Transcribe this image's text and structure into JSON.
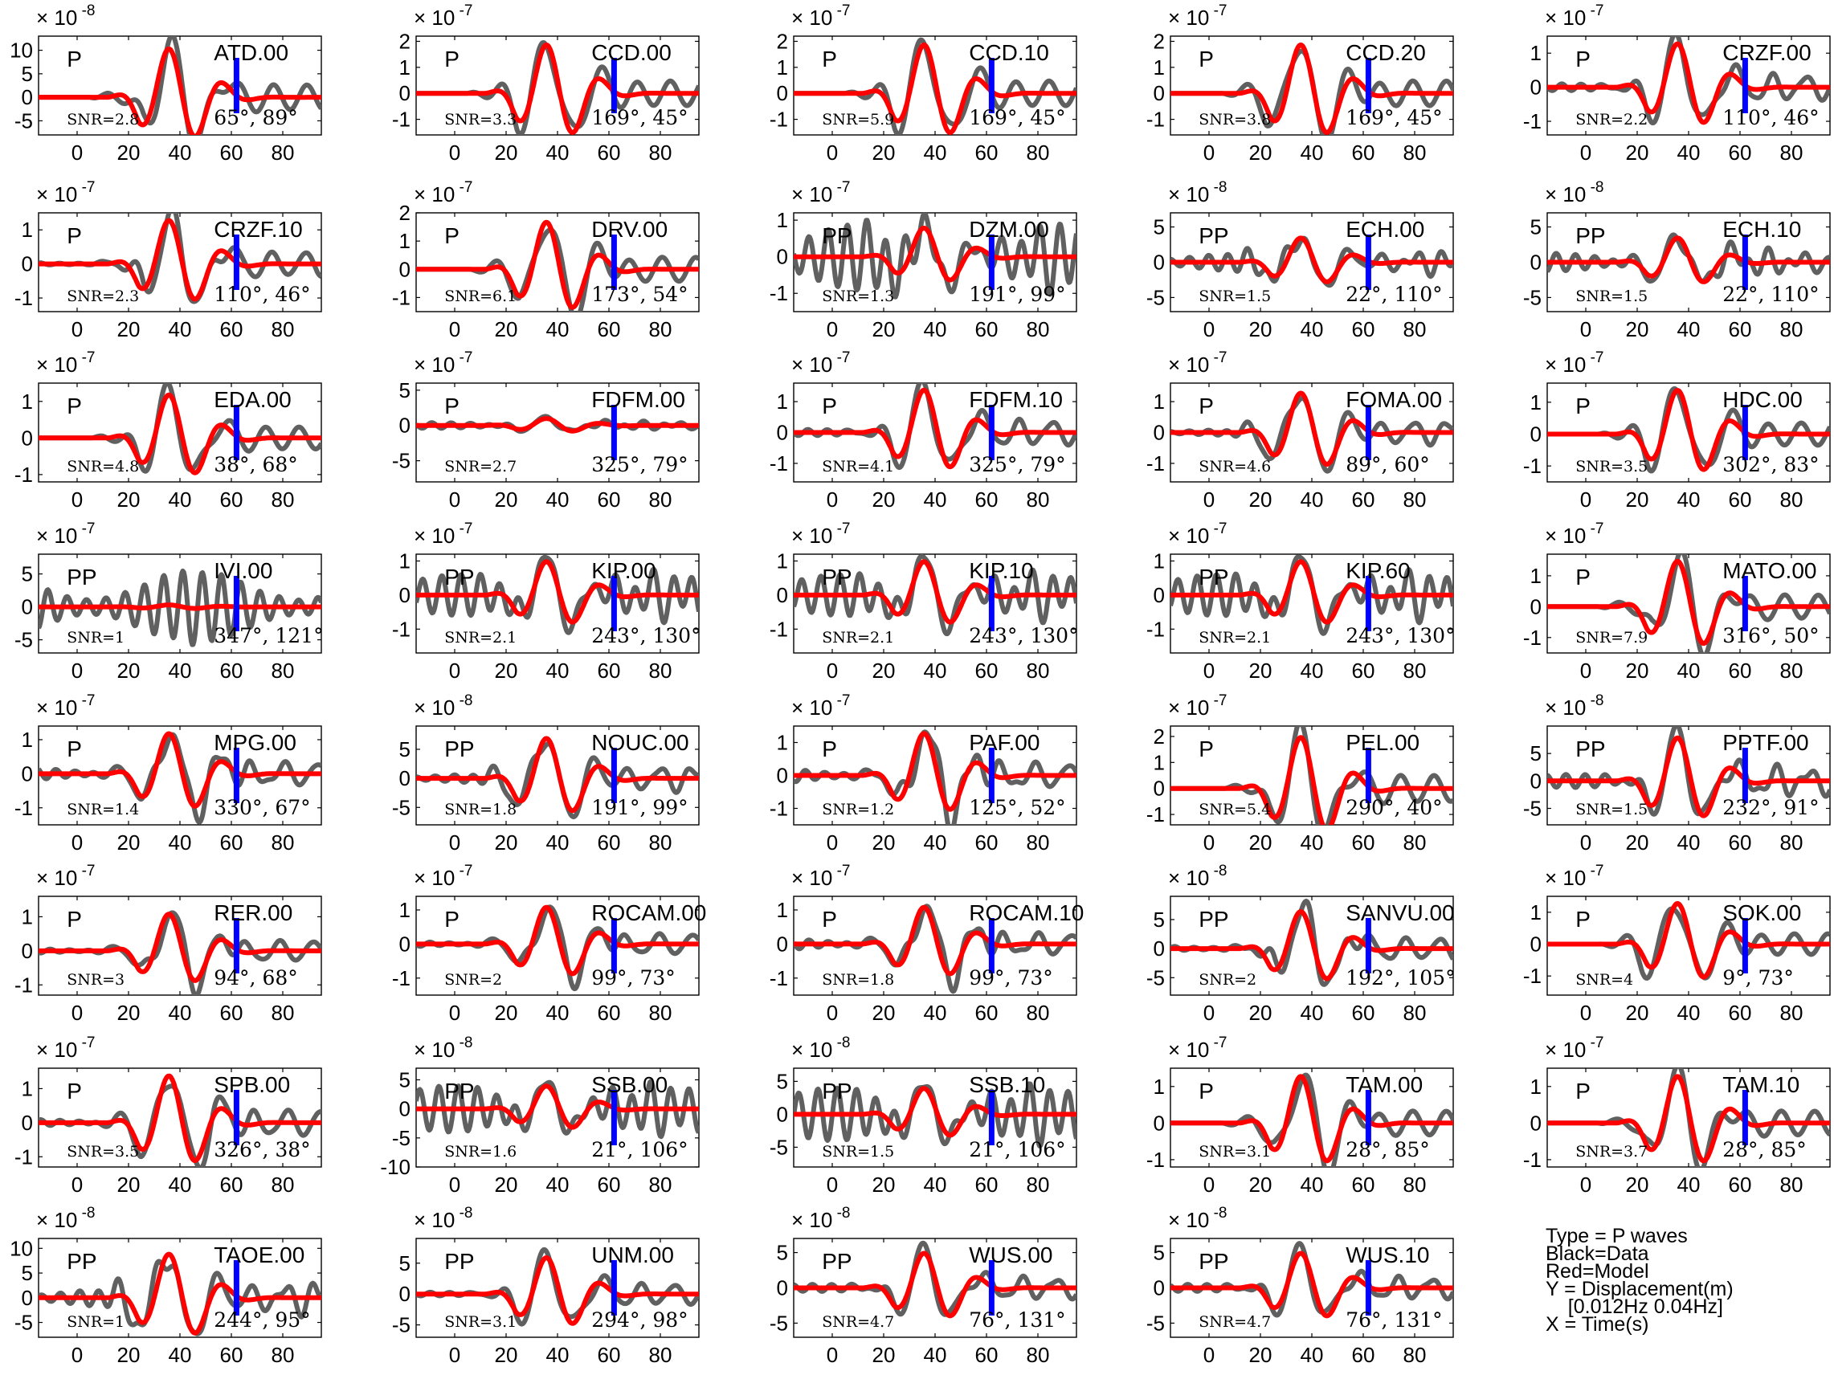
{
  "colors": {
    "data": "#606060",
    "model": "#ff0000",
    "marker": "#0000ff",
    "axis": "#000000"
  },
  "chart_data": {
    "type": "line",
    "xlabel": "Time(s)",
    "ylabel": "Displacement(m)",
    "xlim": [
      -15,
      95
    ],
    "x_ticks": [
      0,
      20,
      40,
      60,
      80
    ],
    "marker_time_s": 62,
    "panels": [
      {
        "station": "ATD.00",
        "phase": "P",
        "snr": "SNR=2.8",
        "angles": "65°, 89°",
        "exponent": "-8",
        "yticks": [
          -5,
          0,
          5,
          10
        ],
        "ylim": [
          -8,
          13
        ],
        "amp": 10.5,
        "osc": 0
      },
      {
        "station": "CCD.00",
        "phase": "P",
        "snr": "SNR=3.3",
        "angles": "169°, 45°",
        "exponent": "-7",
        "yticks": [
          -1,
          0,
          1,
          2
        ],
        "ylim": [
          -1.6,
          2.2
        ],
        "amp": 1.9,
        "osc": 0
      },
      {
        "station": "CCD.10",
        "phase": "P",
        "snr": "SNR=5.9",
        "angles": "169°, 45°",
        "exponent": "-7",
        "yticks": [
          -1,
          0,
          1,
          2
        ],
        "ylim": [
          -1.6,
          2.2
        ],
        "amp": 1.9,
        "osc": 0
      },
      {
        "station": "CCD.20",
        "phase": "P",
        "snr": "SNR=3.8",
        "angles": "169°, 45°",
        "exponent": "-7",
        "yticks": [
          -1,
          0,
          1,
          2
        ],
        "ylim": [
          -1.6,
          2.2
        ],
        "amp": 1.9,
        "osc": 0
      },
      {
        "station": "CRZF.00",
        "phase": "P",
        "snr": "SNR=2.2",
        "angles": "110°, 46°",
        "exponent": "-7",
        "yticks": [
          -1,
          0,
          1
        ],
        "ylim": [
          -1.4,
          1.5
        ],
        "amp": 1.3,
        "osc": 0.1
      },
      {
        "station": "CRZF.10",
        "phase": "P",
        "snr": "SNR=2.3",
        "angles": "110°, 46°",
        "exponent": "-7",
        "yticks": [
          -1,
          0,
          1
        ],
        "ylim": [
          -1.4,
          1.5
        ],
        "amp": 1.3,
        "osc": 0.1
      },
      {
        "station": "DRV.00",
        "phase": "P",
        "snr": "SNR=6.1",
        "angles": "173°, 54°",
        "exponent": "-7",
        "yticks": [
          -1,
          0,
          1,
          2
        ],
        "ylim": [
          -1.5,
          2.0
        ],
        "amp": 1.7,
        "osc": 0
      },
      {
        "station": "DZM.00",
        "phase": "PP",
        "snr": "SNR=1.3",
        "angles": "191°, 99°",
        "exponent": "-7",
        "yticks": [
          -1,
          0,
          1
        ],
        "ylim": [
          -1.5,
          1.2
        ],
        "amp": 0.8,
        "osc": 0.9
      },
      {
        "station": "ECH.00",
        "phase": "PP",
        "snr": "SNR=1.5",
        "angles": "22°, 110°",
        "exponent": "-8",
        "yticks": [
          -5,
          0,
          5
        ],
        "ylim": [
          -7,
          7
        ],
        "amp": 3.5,
        "osc": 1.3
      },
      {
        "station": "ECH.10",
        "phase": "PP",
        "snr": "SNR=1.5",
        "angles": "22°, 110°",
        "exponent": "-8",
        "yticks": [
          -5,
          0,
          5
        ],
        "ylim": [
          -7,
          7
        ],
        "amp": 3.5,
        "osc": 1.3
      },
      {
        "station": "EDA.00",
        "phase": "P",
        "snr": "SNR=4.8",
        "angles": "38°, 68°",
        "exponent": "-7",
        "yticks": [
          -1,
          0,
          1
        ],
        "ylim": [
          -1.2,
          1.5
        ],
        "amp": 1.2,
        "osc": 0
      },
      {
        "station": "FDFM.00",
        "phase": "P",
        "snr": "SNR=2.7",
        "angles": "325°, 79°",
        "exponent": "-7",
        "yticks": [
          -5,
          0,
          5
        ],
        "ylim": [
          -8,
          6
        ],
        "amp": 1.0,
        "osc": 0.4
      },
      {
        "station": "FDFM.10",
        "phase": "P",
        "snr": "SNR=4.1",
        "angles": "325°, 79°",
        "exponent": "-7",
        "yticks": [
          -1,
          0,
          1
        ],
        "ylim": [
          -1.6,
          1.6
        ],
        "amp": 1.4,
        "osc": 0.1
      },
      {
        "station": "FOMA.00",
        "phase": "P",
        "snr": "SNR=4.6",
        "angles": "89°, 60°",
        "exponent": "-7",
        "yticks": [
          -1,
          0,
          1
        ],
        "ylim": [
          -1.6,
          1.6
        ],
        "amp": 1.3,
        "osc": 0.1
      },
      {
        "station": "HDC.00",
        "phase": "P",
        "snr": "SNR=3.5",
        "angles": "302°, 83°",
        "exponent": "-7",
        "yticks": [
          -1,
          0,
          1
        ],
        "ylim": [
          -1.5,
          1.6
        ],
        "amp": 1.4,
        "osc": 0
      },
      {
        "station": "IVI.00",
        "phase": "PP",
        "snr": "SNR=1",
        "angles": "347°, 121°",
        "exponent": "-7",
        "yticks": [
          -5,
          0,
          5
        ],
        "ylim": [
          -7,
          8
        ],
        "amp": 0.3,
        "osc": 5.5
      },
      {
        "station": "KIP.00",
        "phase": "PP",
        "snr": "SNR=2.1",
        "angles": "243°, 130°",
        "exponent": "-7",
        "yticks": [
          -1,
          0,
          1
        ],
        "ylim": [
          -1.7,
          1.2
        ],
        "amp": 1.0,
        "osc": 0.6
      },
      {
        "station": "KIP.10",
        "phase": "PP",
        "snr": "SNR=2.1",
        "angles": "243°, 130°",
        "exponent": "-7",
        "yticks": [
          -1,
          0,
          1
        ],
        "ylim": [
          -1.7,
          1.2
        ],
        "amp": 1.0,
        "osc": 0.6
      },
      {
        "station": "KIP.60",
        "phase": "PP",
        "snr": "SNR=2.1",
        "angles": "243°, 130°",
        "exponent": "-7",
        "yticks": [
          -1,
          0,
          1
        ],
        "ylim": [
          -1.7,
          1.2
        ],
        "amp": 1.0,
        "osc": 0.6
      },
      {
        "station": "MATO.00",
        "phase": "P",
        "snr": "SNR=7.9",
        "angles": "316°, 50°",
        "exponent": "-7",
        "yticks": [
          -1,
          0,
          1
        ],
        "ylim": [
          -1.5,
          1.7
        ],
        "amp": 1.5,
        "osc": 0
      },
      {
        "station": "MPG.00",
        "phase": "P",
        "snr": "SNR=1.4",
        "angles": "330°, 67°",
        "exponent": "-7",
        "yticks": [
          -1,
          0,
          1
        ],
        "ylim": [
          -1.5,
          1.4
        ],
        "amp": 1.2,
        "osc": 0.2
      },
      {
        "station": "NOUC.00",
        "phase": "PP",
        "snr": "SNR=1.8",
        "angles": "191°, 99°",
        "exponent": "-8",
        "yticks": [
          -5,
          0,
          5
        ],
        "ylim": [
          -8,
          9
        ],
        "amp": 7.0,
        "osc": 0.8
      },
      {
        "station": "PAF.00",
        "phase": "P",
        "snr": "SNR=1.2",
        "angles": "125°, 52°",
        "exponent": "-7",
        "yticks": [
          -1,
          0,
          1
        ],
        "ylim": [
          -1.5,
          1.5
        ],
        "amp": 1.3,
        "osc": 0.3
      },
      {
        "station": "PEL.00",
        "phase": "P",
        "snr": "SNR=5.4",
        "angles": "290°, 40°",
        "exponent": "-7",
        "yticks": [
          -1,
          0,
          1,
          2
        ],
        "ylim": [
          -1.4,
          2.4
        ],
        "amp": 2.0,
        "osc": 0
      },
      {
        "station": "PPTF.00",
        "phase": "PP",
        "snr": "SNR=1.5",
        "angles": "232°, 91°",
        "exponent": "-8",
        "yticks": [
          -5,
          0,
          5
        ],
        "ylim": [
          -8,
          10
        ],
        "amp": 8.0,
        "osc": 1.2
      },
      {
        "station": "RER.00",
        "phase": "P",
        "snr": "SNR=3",
        "angles": "94°, 68°",
        "exponent": "-7",
        "yticks": [
          -1,
          0,
          1
        ],
        "ylim": [
          -1.3,
          1.6
        ],
        "amp": 1.1,
        "osc": 0.1
      },
      {
        "station": "ROCAM.00",
        "phase": "P",
        "snr": "SNR=2",
        "angles": "99°, 73°",
        "exponent": "-7",
        "yticks": [
          -1,
          0,
          1
        ],
        "ylim": [
          -1.5,
          1.4
        ],
        "amp": 1.1,
        "osc": 0.1
      },
      {
        "station": "ROCAM.10",
        "phase": "P",
        "snr": "SNR=1.8",
        "angles": "99°, 73°",
        "exponent": "-7",
        "yticks": [
          -1,
          0,
          1
        ],
        "ylim": [
          -1.5,
          1.4
        ],
        "amp": 1.1,
        "osc": 0.2
      },
      {
        "station": "SANVU.00",
        "phase": "PP",
        "snr": "SNR=2",
        "angles": "192°, 105°",
        "exponent": "-8",
        "yticks": [
          -5,
          0,
          5
        ],
        "ylim": [
          -8,
          9
        ],
        "amp": 6.5,
        "osc": 1.0
      },
      {
        "station": "SOK.00",
        "phase": "P",
        "snr": "SNR=4",
        "angles": "9°, 73°",
        "exponent": "-7",
        "yticks": [
          -1,
          0,
          1
        ],
        "ylim": [
          -1.6,
          1.5
        ],
        "amp": 1.3,
        "osc": 0
      },
      {
        "station": "SPB.00",
        "phase": "P",
        "snr": "SNR=3.5",
        "angles": "326°, 38°",
        "exponent": "-7",
        "yticks": [
          -1,
          0,
          1
        ],
        "ylim": [
          -1.3,
          1.6
        ],
        "amp": 1.4,
        "osc": 0.1
      },
      {
        "station": "SSB.00",
        "phase": "PP",
        "snr": "SNR=1.6",
        "angles": "21°, 106°",
        "exponent": "-8",
        "yticks": [
          -10,
          -5,
          0,
          5
        ],
        "ylim": [
          -10,
          7
        ],
        "amp": 4.0,
        "osc": 4.0
      },
      {
        "station": "SSB.10",
        "phase": "PP",
        "snr": "SNR=1.5",
        "angles": "21°, 106°",
        "exponent": "-8",
        "yticks": [
          -5,
          0,
          5
        ],
        "ylim": [
          -8,
          7
        ],
        "amp": 4.0,
        "osc": 4.0
      },
      {
        "station": "TAM.00",
        "phase": "P",
        "snr": "SNR=3.1",
        "angles": "28°, 85°",
        "exponent": "-7",
        "yticks": [
          -1,
          0,
          1
        ],
        "ylim": [
          -1.2,
          1.5
        ],
        "amp": 1.3,
        "osc": 0
      },
      {
        "station": "TAM.10",
        "phase": "P",
        "snr": "SNR=3.7",
        "angles": "28°, 85°",
        "exponent": "-7",
        "yticks": [
          -1,
          0,
          1
        ],
        "ylim": [
          -1.2,
          1.5
        ],
        "amp": 1.3,
        "osc": 0
      },
      {
        "station": "TAOE.00",
        "phase": "PP",
        "snr": "SNR=1",
        "angles": "244°, 95°",
        "exponent": "-8",
        "yticks": [
          -5,
          0,
          5,
          10
        ],
        "ylim": [
          -8,
          12
        ],
        "amp": 9.0,
        "osc": 2.0
      },
      {
        "station": "UNM.00",
        "phase": "PP",
        "snr": "SNR=3.1",
        "angles": "294°, 98°",
        "exponent": "-8",
        "yticks": [
          -5,
          0,
          5
        ],
        "ylim": [
          -7,
          9
        ],
        "amp": 6.0,
        "osc": 0.3
      },
      {
        "station": "WUS.00",
        "phase": "PP",
        "snr": "SNR=4.7",
        "angles": "76°, 131°",
        "exponent": "-8",
        "yticks": [
          -5,
          0,
          5
        ],
        "ylim": [
          -7,
          7
        ],
        "amp": 5.0,
        "osc": 0.5
      },
      {
        "station": "WUS.10",
        "phase": "PP",
        "snr": "SNR=4.7",
        "angles": "76°, 131°",
        "exponent": "-8",
        "yticks": [
          -5,
          0,
          5
        ],
        "ylim": [
          -7,
          7
        ],
        "amp": 5.0,
        "osc": 0.5
      }
    ]
  },
  "legend": {
    "line1": "Type = P waves",
    "line2": "Black=Data",
    "line3": "Red=Model",
    "line4": "Y = Displacement(m)",
    "line5": "    [0.012Hz 0.04Hz]",
    "line6": "X = Time(s)"
  }
}
